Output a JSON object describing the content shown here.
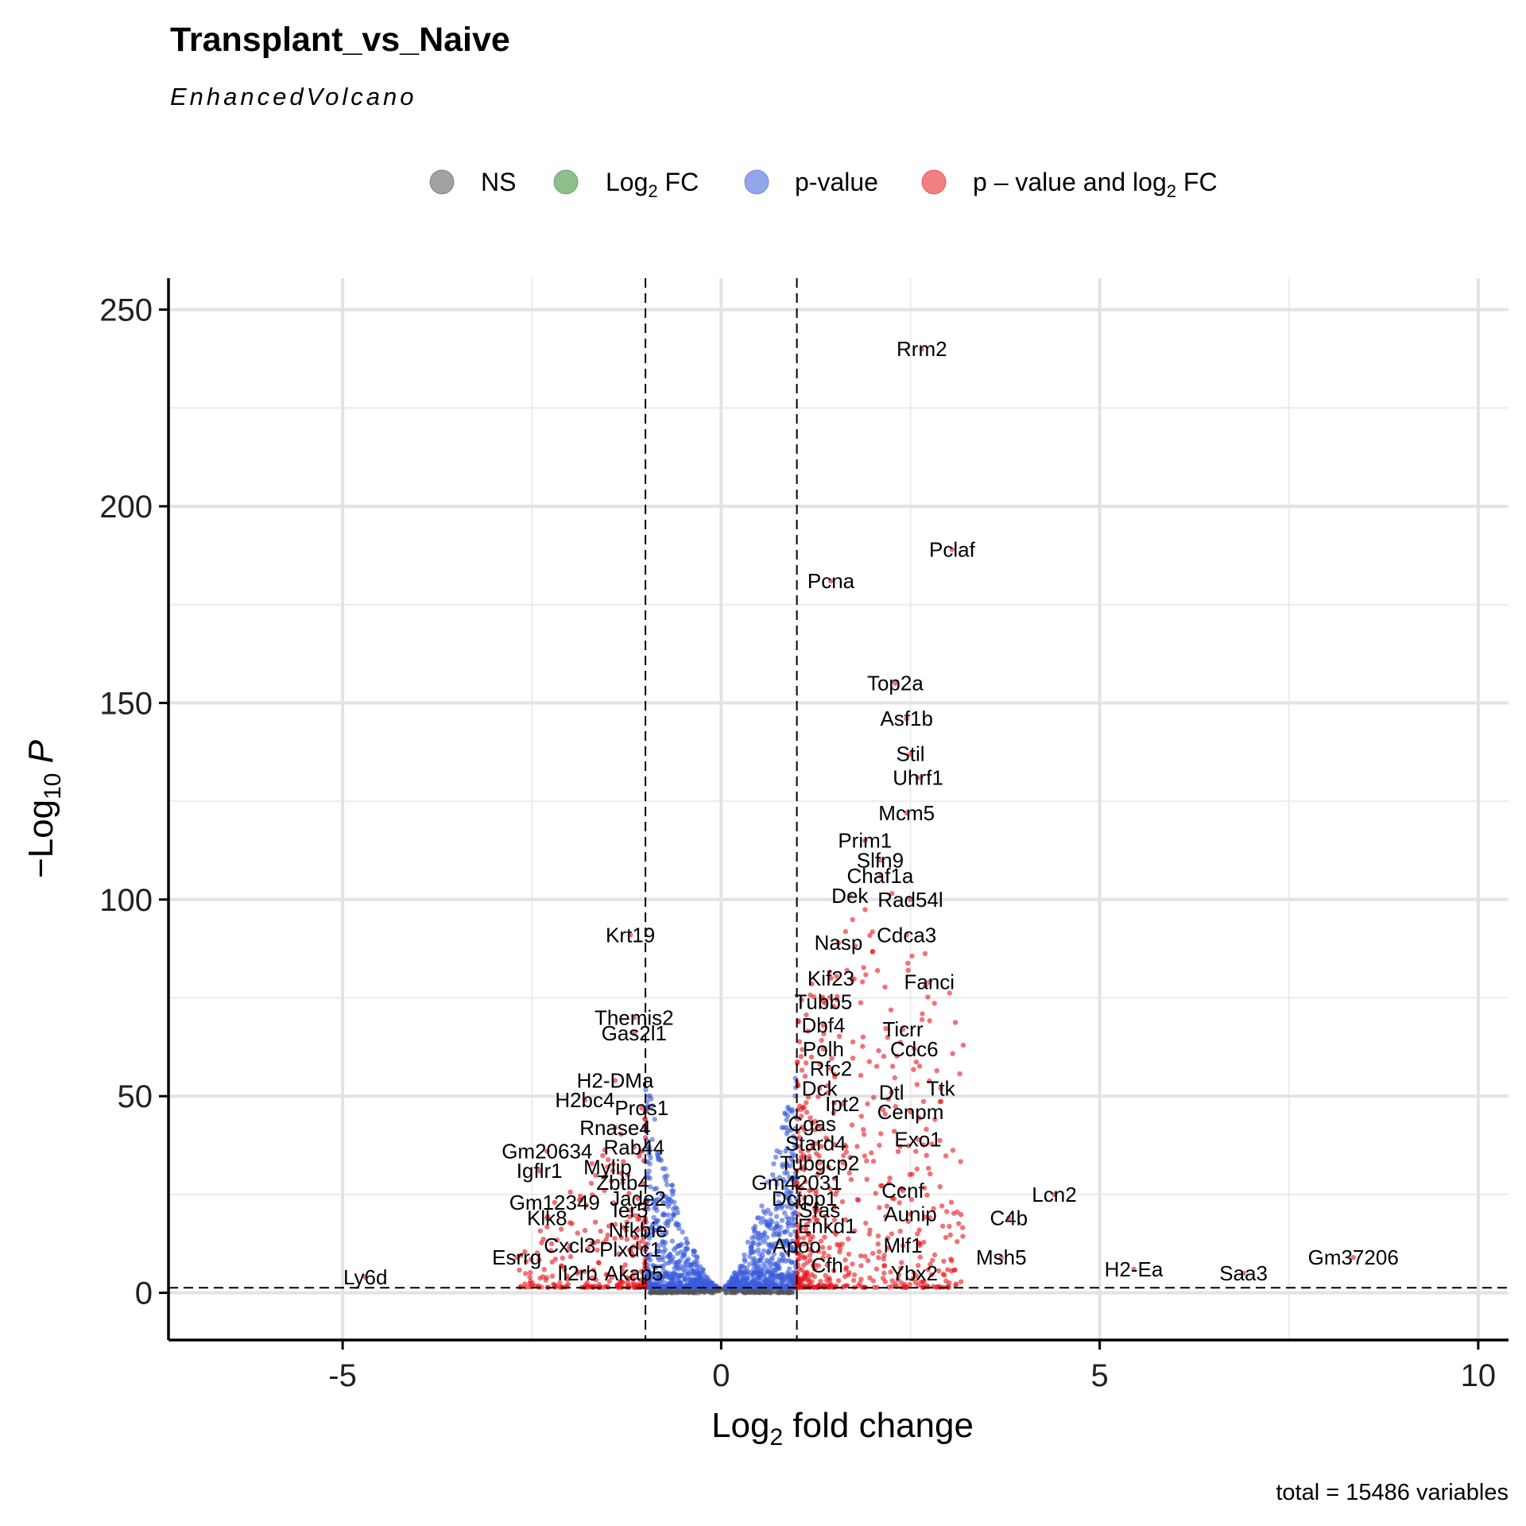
{
  "title": "Transplant_vs_Naive",
  "subtitle": "EnhancedVolcano",
  "caption": "total = 15486 variables",
  "legend": {
    "placement": "top",
    "items": [
      {
        "label": "NS",
        "color": "#555555"
      },
      {
        "label": "Log",
        "sub": "2",
        "suffix": " FC",
        "color": "#2e8b2e"
      },
      {
        "label": "p-value",
        "color": "#3b5bdb"
      },
      {
        "label": "p – value and log",
        "sub": "2",
        "suffix": " FC",
        "color": "#e8151c"
      }
    ]
  },
  "chart_data": {
    "type": "scatter",
    "title": "Transplant_vs_Naive",
    "subtitle": "EnhancedVolcano",
    "xlabel": "Log2 fold change",
    "ylabel": "-Log10 P",
    "xlim": [
      -7.3,
      10.4
    ],
    "ylim": [
      -12,
      258
    ],
    "x_ticks": [
      -5,
      0,
      5,
      10
    ],
    "x_tick_labels": [
      "-5",
      "0",
      "5",
      "10"
    ],
    "y_ticks": [
      0,
      50,
      100,
      150,
      200,
      250
    ],
    "y_tick_labels": [
      "0",
      "50",
      "100",
      "150",
      "200",
      "250"
    ],
    "grid": true,
    "fc_cutoff": 1,
    "p_cutoff_neglog10": 1.3,
    "total_variables": 15486,
    "series_colors": {
      "NS": "#555555",
      "Log2 FC": "#2e8b2e",
      "p-value": "#3b5bdb",
      "p-value and log2 FC": "#e8151c"
    },
    "labeled_genes": [
      {
        "gene": "Rrm2",
        "x": 2.65,
        "y": 240
      },
      {
        "gene": "Pclaf",
        "x": 3.05,
        "y": 189
      },
      {
        "gene": "Pcna",
        "x": 1.45,
        "y": 181
      },
      {
        "gene": "Top2a",
        "x": 2.3,
        "y": 155
      },
      {
        "gene": "Asf1b",
        "x": 2.45,
        "y": 146
      },
      {
        "gene": "Stil",
        "x": 2.5,
        "y": 137
      },
      {
        "gene": "Uhrf1",
        "x": 2.6,
        "y": 131
      },
      {
        "gene": "Mcm5",
        "x": 2.45,
        "y": 122
      },
      {
        "gene": "Prim1",
        "x": 1.9,
        "y": 115
      },
      {
        "gene": "Slfn9",
        "x": 2.1,
        "y": 110
      },
      {
        "gene": "Chaf1a",
        "x": 2.1,
        "y": 106
      },
      {
        "gene": "Dek",
        "x": 1.7,
        "y": 101
      },
      {
        "gene": "Rad54l",
        "x": 2.5,
        "y": 100
      },
      {
        "gene": "Cdca3",
        "x": 2.45,
        "y": 91
      },
      {
        "gene": "Nasp",
        "x": 1.55,
        "y": 89
      },
      {
        "gene": "Krt19",
        "x": -1.2,
        "y": 91
      },
      {
        "gene": "Kif23",
        "x": 1.45,
        "y": 80
      },
      {
        "gene": "Fanci",
        "x": 2.75,
        "y": 79
      },
      {
        "gene": "Tubb5",
        "x": 1.35,
        "y": 74
      },
      {
        "gene": "Themis2",
        "x": -1.15,
        "y": 70
      },
      {
        "gene": "Dbf4",
        "x": 1.35,
        "y": 68
      },
      {
        "gene": "Ticrr",
        "x": 2.4,
        "y": 67
      },
      {
        "gene": "Gas2l1",
        "x": -1.15,
        "y": 66
      },
      {
        "gene": "Polh",
        "x": 1.35,
        "y": 62
      },
      {
        "gene": "Cdc6",
        "x": 2.55,
        "y": 62
      },
      {
        "gene": "Rfc2",
        "x": 1.45,
        "y": 57
      },
      {
        "gene": "H2-DMa",
        "x": -1.4,
        "y": 54
      },
      {
        "gene": "Dck",
        "x": 1.3,
        "y": 52
      },
      {
        "gene": "Dtl",
        "x": 2.25,
        "y": 51
      },
      {
        "gene": "Ttk",
        "x": 2.9,
        "y": 52
      },
      {
        "gene": "H2bc4",
        "x": -1.8,
        "y": 49
      },
      {
        "gene": "Ipt2",
        "x": 1.6,
        "y": 48
      },
      {
        "gene": "Pros1",
        "x": -1.05,
        "y": 47
      },
      {
        "gene": "Cenpm",
        "x": 2.5,
        "y": 46
      },
      {
        "gene": "Rnase4",
        "x": -1.4,
        "y": 42
      },
      {
        "gene": "Cgas",
        "x": 1.2,
        "y": 43
      },
      {
        "gene": "Exo1",
        "x": 2.6,
        "y": 39
      },
      {
        "gene": "Stard4",
        "x": 1.25,
        "y": 38
      },
      {
        "gene": "Rab44",
        "x": -1.15,
        "y": 37
      },
      {
        "gene": "Gm20634",
        "x": -2.3,
        "y": 36
      },
      {
        "gene": "Tubgcp2",
        "x": 1.3,
        "y": 33
      },
      {
        "gene": "Mylip",
        "x": -1.5,
        "y": 32
      },
      {
        "gene": "Igflr1",
        "x": -2.4,
        "y": 31
      },
      {
        "gene": "Gm42031",
        "x": 1.0,
        "y": 28
      },
      {
        "gene": "Zbtb4",
        "x": -1.3,
        "y": 28
      },
      {
        "gene": "Ccnf",
        "x": 2.4,
        "y": 26
      },
      {
        "gene": "Lcn2",
        "x": 4.4,
        "y": 25
      },
      {
        "gene": "Dctpp1",
        "x": 1.1,
        "y": 24
      },
      {
        "gene": "Jade2",
        "x": -1.1,
        "y": 24
      },
      {
        "gene": "Gm12349",
        "x": -2.2,
        "y": 23
      },
      {
        "gene": "Ier5",
        "x": -1.2,
        "y": 21
      },
      {
        "gene": "Sfas",
        "x": 1.3,
        "y": 21
      },
      {
        "gene": "Aunip",
        "x": 2.5,
        "y": 20
      },
      {
        "gene": "C4b",
        "x": 3.8,
        "y": 19
      },
      {
        "gene": "Klk8",
        "x": -2.3,
        "y": 19
      },
      {
        "gene": "Enkd1",
        "x": 1.4,
        "y": 17
      },
      {
        "gene": "Nfkbie",
        "x": -1.1,
        "y": 16
      },
      {
        "gene": "Cxcl3",
        "x": -2.0,
        "y": 12
      },
      {
        "gene": "Apoo",
        "x": 1.0,
        "y": 12
      },
      {
        "gene": "Mlf1",
        "x": 2.4,
        "y": 12
      },
      {
        "gene": "Plxdc1",
        "x": -1.2,
        "y": 11
      },
      {
        "gene": "Gm37206",
        "x": 8.35,
        "y": 9
      },
      {
        "gene": "Esrrg",
        "x": -2.7,
        "y": 9
      },
      {
        "gene": "Msh5",
        "x": 3.7,
        "y": 9
      },
      {
        "gene": "Cfh",
        "x": 1.4,
        "y": 7
      },
      {
        "gene": "H2-Ea",
        "x": 5.45,
        "y": 6
      },
      {
        "gene": "Il2rb",
        "x": -1.9,
        "y": 5
      },
      {
        "gene": "Akap5",
        "x": -1.15,
        "y": 5
      },
      {
        "gene": "Ybx2",
        "x": 2.55,
        "y": 5
      },
      {
        "gene": "Ly6d",
        "x": -4.7,
        "y": 4
      },
      {
        "gene": "Saa3",
        "x": 6.9,
        "y": 5
      }
    ]
  }
}
